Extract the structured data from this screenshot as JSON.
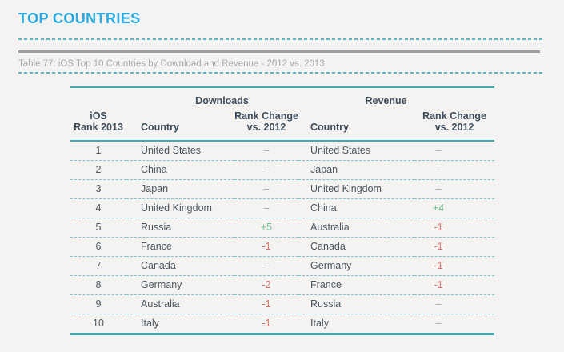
{
  "page": {
    "title": "TOP COUNTRIES",
    "caption": "Table 77: iOS Top 10 Countries by Download and Revenue - 2012 vs. 2013"
  },
  "colors": {
    "accent_blue": "#29A9DF",
    "teal_line": "#45A8B0",
    "header_navy": "#3D4D5D",
    "body_text": "#4C565F",
    "positive_green": "#6FBE90",
    "negative_red": "#DC746C",
    "neutral_dash": "#9FA6AC",
    "caption_gray": "#ABABAB",
    "rule_gray": "#9E9E9E",
    "background": "#F4F3F1"
  },
  "table": {
    "group_headers": {
      "downloads": "Downloads",
      "revenue": "Revenue"
    },
    "columns": {
      "rank_line1": "iOS",
      "rank_line2": "Rank 2013",
      "country": "Country",
      "change_line1": "Rank Change",
      "change_line2": "vs. 2012"
    },
    "rows": [
      {
        "rank": "1",
        "dl_country": "United States",
        "dl_change": "–",
        "rev_country": "United States",
        "rev_change": "–"
      },
      {
        "rank": "2",
        "dl_country": "China",
        "dl_change": "–",
        "rev_country": "Japan",
        "rev_change": "–"
      },
      {
        "rank": "3",
        "dl_country": "Japan",
        "dl_change": "–",
        "rev_country": "United Kingdom",
        "rev_change": "–"
      },
      {
        "rank": "4",
        "dl_country": "United Kingdom",
        "dl_change": "–",
        "rev_country": "China",
        "rev_change": "+4"
      },
      {
        "rank": "5",
        "dl_country": "Russia",
        "dl_change": "+5",
        "rev_country": "Australia",
        "rev_change": "-1"
      },
      {
        "rank": "6",
        "dl_country": "France",
        "dl_change": "-1",
        "rev_country": "Canada",
        "rev_change": "-1"
      },
      {
        "rank": "7",
        "dl_country": "Canada",
        "dl_change": "–",
        "rev_country": "Germany",
        "rev_change": "-1"
      },
      {
        "rank": "8",
        "dl_country": "Germany",
        "dl_change": "-2",
        "rev_country": "France",
        "rev_change": "-1"
      },
      {
        "rank": "9",
        "dl_country": "Australia",
        "dl_change": "-1",
        "rev_country": "Russia",
        "rev_change": "–"
      },
      {
        "rank": "10",
        "dl_country": "Italy",
        "dl_change": "-1",
        "rev_country": "Italy",
        "rev_change": "–"
      }
    ]
  }
}
